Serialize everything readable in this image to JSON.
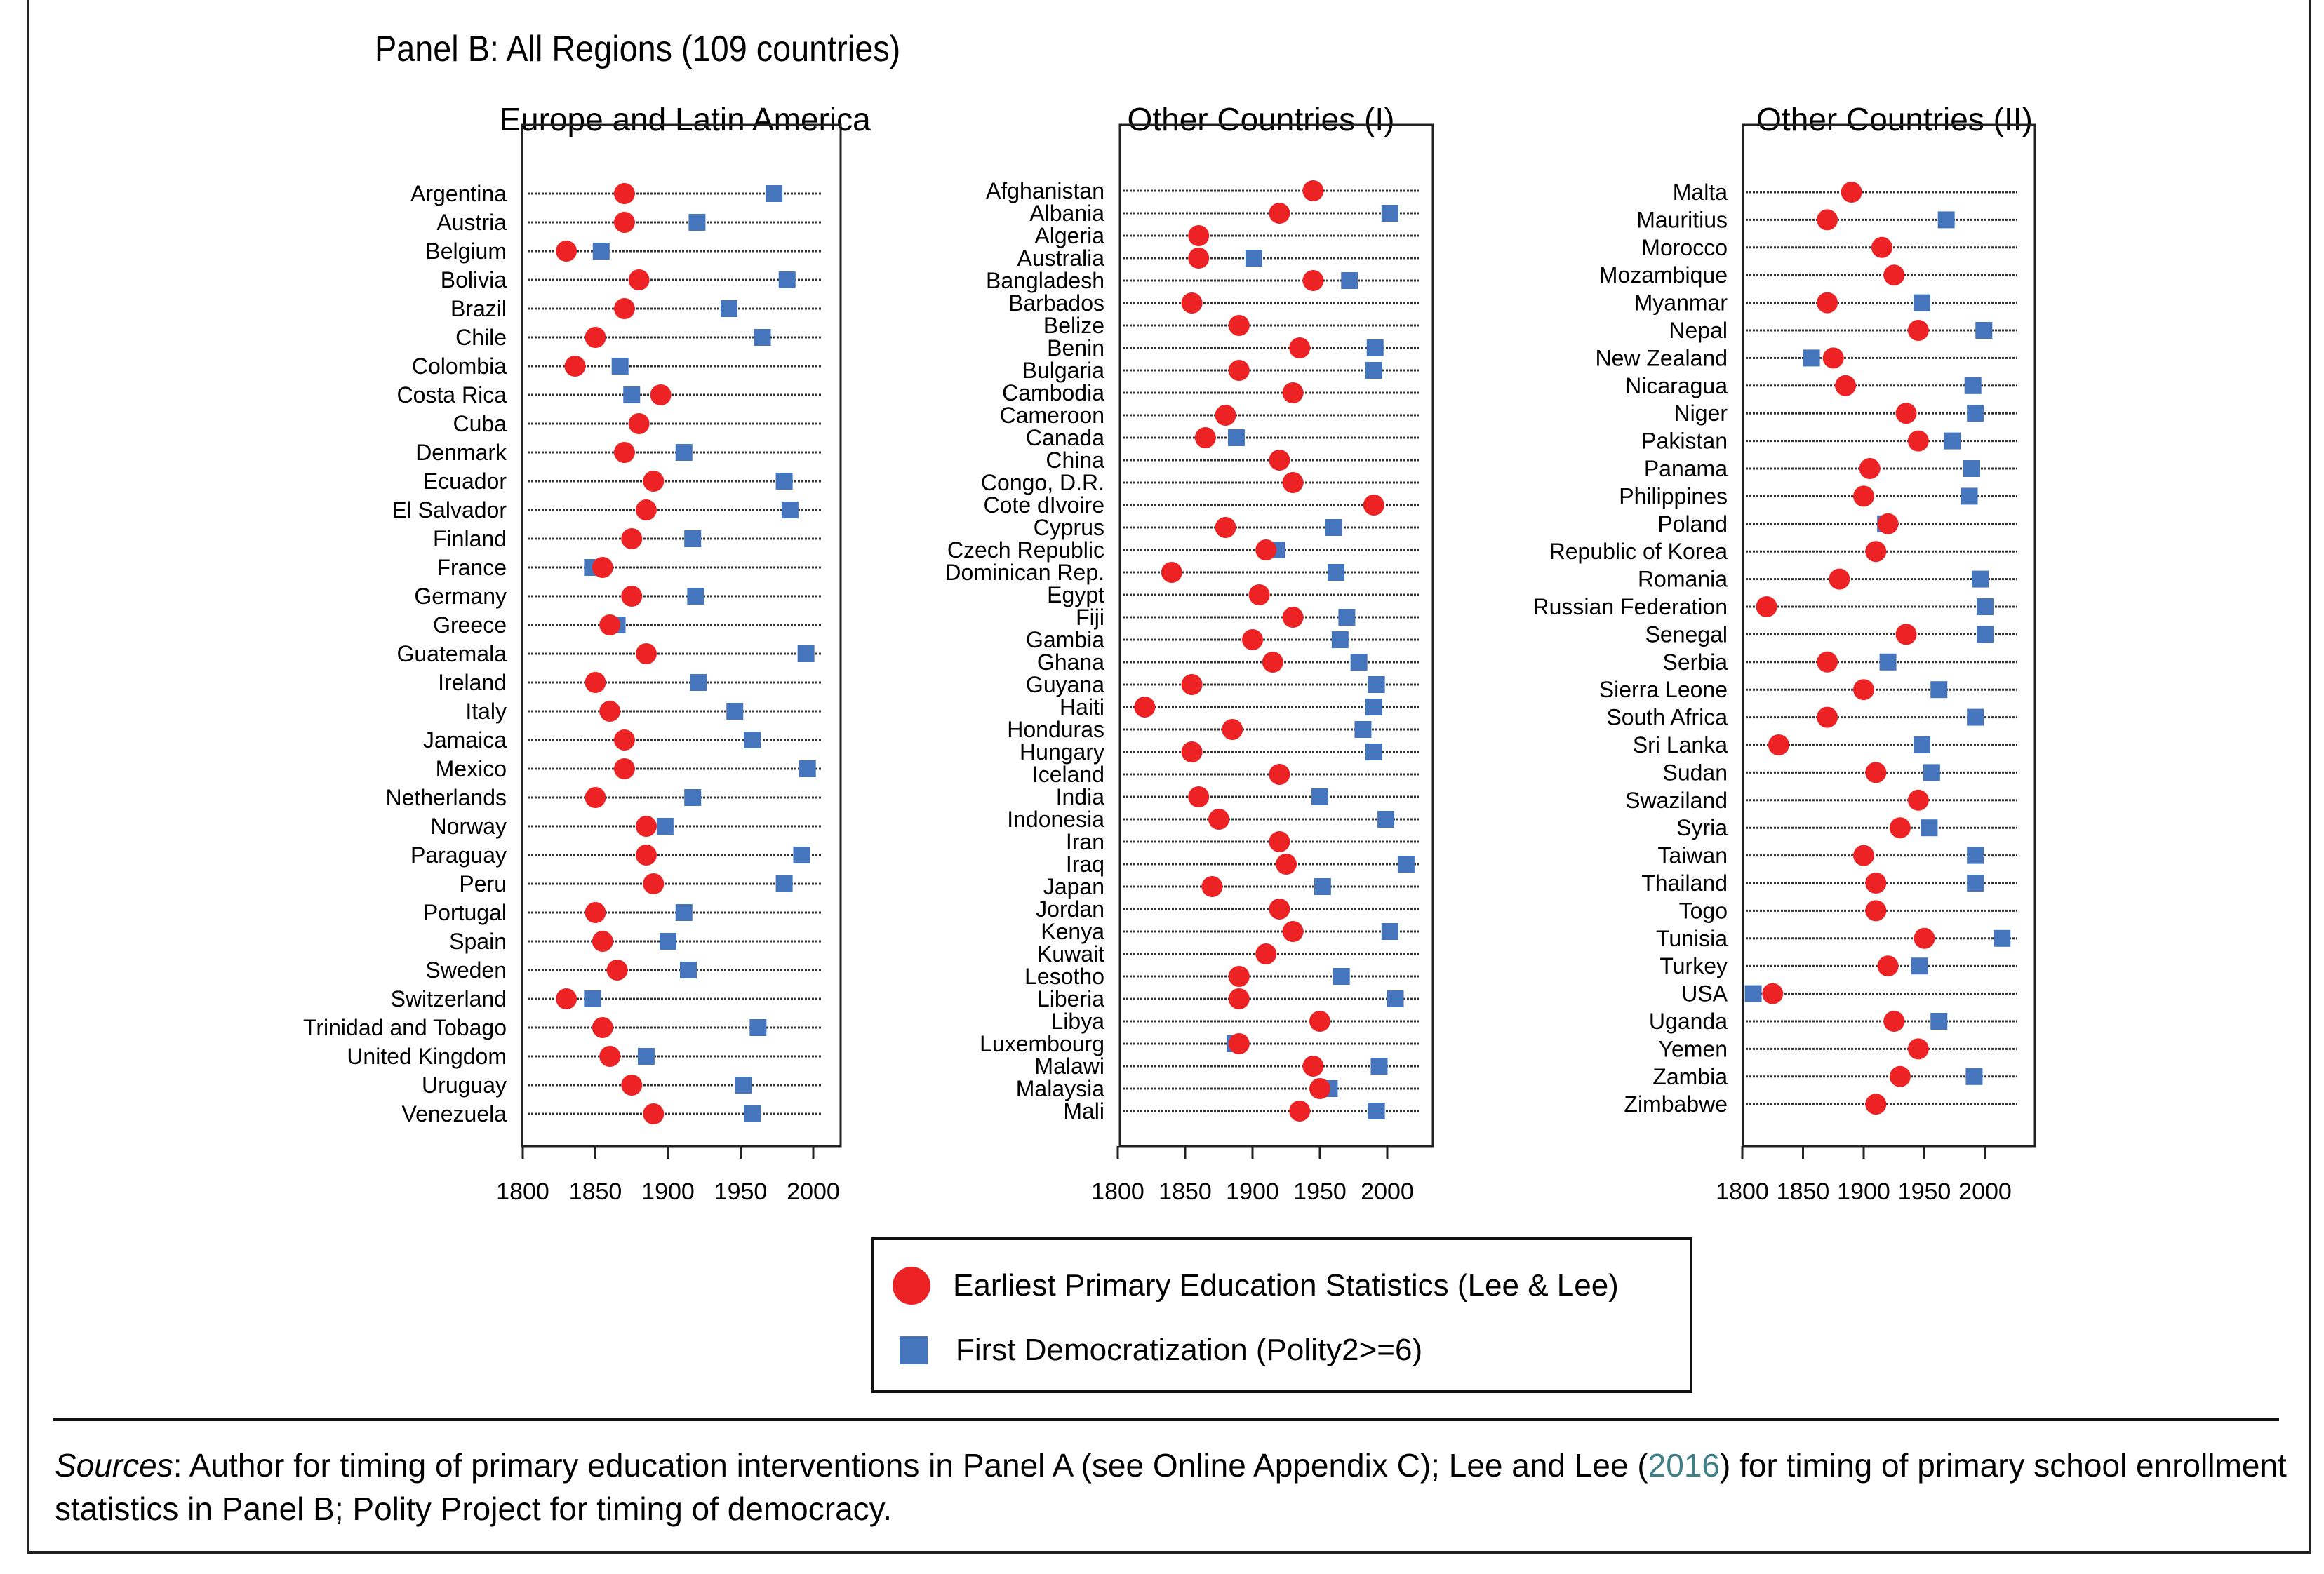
{
  "figure": {
    "panel_title": "Panel B: All Regions (109 countries)",
    "legend": {
      "circle_label": "Earliest Primary Education Statistics (Lee & Lee)",
      "square_label": "First Democratization (Polity2>=6)"
    },
    "sources": {
      "lead": "Sources",
      "text_before_link": ": Author for timing of primary education interventions in Panel A (see Online Appendix C); Lee and Lee (",
      "link": "2016",
      "text_after_link": ") for timing of primary school enrollment statistics in Panel B; Polity Project for timing of democracy."
    }
  },
  "colors": {
    "education": "#ed2224",
    "democracy": "#4575bd",
    "link": "#3f7f86"
  },
  "chart_data": [
    {
      "type": "scatter",
      "title": "Europe and Latin America",
      "xlabel": "",
      "ylabel": "",
      "xlim": [
        1800,
        2000
      ],
      "xticks": [
        "1800",
        "1850",
        "1900",
        "1950",
        "2000"
      ],
      "grid": "dotted horizontal row lines",
      "series_names": [
        "Earliest Primary Education Statistics (Lee & Lee)",
        "First Democratization (Polity2>=6)"
      ],
      "rows": [
        {
          "country": "Argentina",
          "education": 1870,
          "democracy": 1973
        },
        {
          "country": "Austria",
          "education": 1870,
          "democracy": 1920
        },
        {
          "country": "Belgium",
          "education": 1830,
          "democracy": 1854
        },
        {
          "country": "Bolivia",
          "education": 1880,
          "democracy": 1982
        },
        {
          "country": "Brazil",
          "education": 1870,
          "democracy": 1942
        },
        {
          "country": "Chile",
          "education": 1850,
          "democracy": 1965
        },
        {
          "country": "Colombia",
          "education": 1836,
          "democracy": 1867
        },
        {
          "country": "Costa Rica",
          "education": 1895,
          "democracy": 1875
        },
        {
          "country": "Cuba",
          "education": 1880,
          "democracy": null
        },
        {
          "country": "Denmark",
          "education": 1870,
          "democracy": 1911
        },
        {
          "country": "Ecuador",
          "education": 1890,
          "democracy": 1980
        },
        {
          "country": "El Salvador",
          "education": 1885,
          "democracy": 1984
        },
        {
          "country": "Finland",
          "education": 1875,
          "democracy": 1917
        },
        {
          "country": "France",
          "education": 1855,
          "democracy": 1848
        },
        {
          "country": "Germany",
          "education": 1875,
          "democracy": 1919
        },
        {
          "country": "Greece",
          "education": 1860,
          "democracy": 1865
        },
        {
          "country": "Guatemala",
          "education": 1885,
          "democracy": 1995
        },
        {
          "country": "Ireland",
          "education": 1850,
          "democracy": 1921
        },
        {
          "country": "Italy",
          "education": 1860,
          "democracy": 1946
        },
        {
          "country": "Jamaica",
          "education": 1870,
          "democracy": 1958
        },
        {
          "country": "Mexico",
          "education": 1870,
          "democracy": 1996
        },
        {
          "country": "Netherlands",
          "education": 1850,
          "democracy": 1917
        },
        {
          "country": "Norway",
          "education": 1885,
          "democracy": 1898
        },
        {
          "country": "Paraguay",
          "education": 1885,
          "democracy": 1992
        },
        {
          "country": "Peru",
          "education": 1890,
          "democracy": 1980
        },
        {
          "country": "Portugal",
          "education": 1850,
          "democracy": 1911
        },
        {
          "country": "Spain",
          "education": 1855,
          "democracy": 1900
        },
        {
          "country": "Sweden",
          "education": 1865,
          "democracy": 1914
        },
        {
          "country": "Switzerland",
          "education": 1830,
          "democracy": 1848
        },
        {
          "country": "Trinidad and Tobago",
          "education": 1855,
          "democracy": 1962
        },
        {
          "country": "United Kingdom",
          "education": 1860,
          "democracy": 1885
        },
        {
          "country": "Uruguay",
          "education": 1875,
          "democracy": 1952
        },
        {
          "country": "Venezuela",
          "education": 1890,
          "democracy": 1958
        }
      ]
    },
    {
      "type": "scatter",
      "title": "Other Countries (I)",
      "xlabel": "",
      "ylabel": "",
      "xlim": [
        1800,
        2000
      ],
      "xticks": [
        "1800",
        "1850",
        "1900",
        "1950",
        "2000"
      ],
      "grid": "dotted horizontal row lines",
      "series_names": [
        "Earliest Primary Education Statistics (Lee & Lee)",
        "First Democratization (Polity2>=6)"
      ],
      "rows": [
        {
          "country": "Afghanistan",
          "education": 1945,
          "democracy": null
        },
        {
          "country": "Albania",
          "education": 1920,
          "democracy": 2002
        },
        {
          "country": "Algeria",
          "education": 1860,
          "democracy": null
        },
        {
          "country": "Australia",
          "education": 1860,
          "democracy": 1901
        },
        {
          "country": "Bangladesh",
          "education": 1945,
          "democracy": 1972
        },
        {
          "country": "Barbados",
          "education": 1855,
          "democracy": null
        },
        {
          "country": "Belize",
          "education": 1890,
          "democracy": null
        },
        {
          "country": "Benin",
          "education": 1935,
          "democracy": 1991
        },
        {
          "country": "Bulgaria",
          "education": 1890,
          "democracy": 1990
        },
        {
          "country": "Cambodia",
          "education": 1930,
          "democracy": null
        },
        {
          "country": "Cameroon",
          "education": 1880,
          "democracy": null
        },
        {
          "country": "Canada",
          "education": 1865,
          "democracy": 1888
        },
        {
          "country": "China",
          "education": 1920,
          "democracy": null
        },
        {
          "country": "Congo, D.R.",
          "education": 1930,
          "democracy": null
        },
        {
          "country": "Cote dIvoire",
          "education": 1990,
          "democracy": null
        },
        {
          "country": "Cyprus",
          "education": 1880,
          "democracy": 1960
        },
        {
          "country": "Czech Republic",
          "education": 1910,
          "democracy": 1918
        },
        {
          "country": "Dominican Rep.",
          "education": 1840,
          "democracy": 1962
        },
        {
          "country": "Egypt",
          "education": 1905,
          "democracy": null
        },
        {
          "country": "Fiji",
          "education": 1930,
          "democracy": 1970
        },
        {
          "country": "Gambia",
          "education": 1900,
          "democracy": 1965
        },
        {
          "country": "Ghana",
          "education": 1915,
          "democracy": 1979
        },
        {
          "country": "Guyana",
          "education": 1855,
          "democracy": 1992
        },
        {
          "country": "Haiti",
          "education": 1820,
          "democracy": 1990
        },
        {
          "country": "Honduras",
          "education": 1885,
          "democracy": 1982
        },
        {
          "country": "Hungary",
          "education": 1855,
          "democracy": 1990
        },
        {
          "country": "Iceland",
          "education": 1920,
          "democracy": null
        },
        {
          "country": "India",
          "education": 1860,
          "democracy": 1950
        },
        {
          "country": "Indonesia",
          "education": 1875,
          "democracy": 1999
        },
        {
          "country": "Iran",
          "education": 1920,
          "democracy": null
        },
        {
          "country": "Iraq",
          "education": 1925,
          "democracy": 2014
        },
        {
          "country": "Japan",
          "education": 1870,
          "democracy": 1952
        },
        {
          "country": "Jordan",
          "education": 1920,
          "democracy": null
        },
        {
          "country": "Kenya",
          "education": 1930,
          "democracy": 2002
        },
        {
          "country": "Kuwait",
          "education": 1910,
          "democracy": null
        },
        {
          "country": "Lesotho",
          "education": 1890,
          "democracy": 1966
        },
        {
          "country": "Liberia",
          "education": 1890,
          "democracy": 2006
        },
        {
          "country": "Libya",
          "education": 1950,
          "democracy": null
        },
        {
          "country": "Luxembourg",
          "education": 1890,
          "democracy": 1887
        },
        {
          "country": "Malawi",
          "education": 1945,
          "democracy": 1994
        },
        {
          "country": "Malaysia",
          "education": 1950,
          "democracy": 1957
        },
        {
          "country": "Mali",
          "education": 1935,
          "democracy": 1992
        }
      ]
    },
    {
      "type": "scatter",
      "title": "Other Countries (II)",
      "xlabel": "",
      "ylabel": "",
      "xlim": [
        1800,
        2000
      ],
      "xticks": [
        "1800",
        "1850",
        "1900",
        "1950",
        "2000"
      ],
      "grid": "dotted horizontal row lines",
      "series_names": [
        "Earliest Primary Education Statistics (Lee & Lee)",
        "First Democratization (Polity2>=6)"
      ],
      "rows": [
        {
          "country": "Malta",
          "education": 1890,
          "democracy": null
        },
        {
          "country": "Mauritius",
          "education": 1870,
          "democracy": 1968
        },
        {
          "country": "Morocco",
          "education": 1915,
          "democracy": null
        },
        {
          "country": "Mozambique",
          "education": 1925,
          "democracy": null
        },
        {
          "country": "Myanmar",
          "education": 1870,
          "democracy": 1948
        },
        {
          "country": "Nepal",
          "education": 1945,
          "democracy": 1999
        },
        {
          "country": "New Zealand",
          "education": 1875,
          "democracy": 1857
        },
        {
          "country": "Nicaragua",
          "education": 1885,
          "democracy": 1990
        },
        {
          "country": "Niger",
          "education": 1935,
          "democracy": 1992
        },
        {
          "country": "Pakistan",
          "education": 1945,
          "democracy": 1973
        },
        {
          "country": "Panama",
          "education": 1905,
          "democracy": 1989
        },
        {
          "country": "Philippines",
          "education": 1900,
          "democracy": 1987
        },
        {
          "country": "Poland",
          "education": 1920,
          "democracy": 1918
        },
        {
          "country": "Republic of Korea",
          "education": 1910,
          "democracy": null
        },
        {
          "country": "Romania",
          "education": 1880,
          "democracy": 1996
        },
        {
          "country": "Russian Federation",
          "education": 1820,
          "democracy": 2000
        },
        {
          "country": "Senegal",
          "education": 1935,
          "democracy": 2000
        },
        {
          "country": "Serbia",
          "education": 1870,
          "democracy": 1920
        },
        {
          "country": "Sierra Leone",
          "education": 1900,
          "democracy": 1962
        },
        {
          "country": "South Africa",
          "education": 1870,
          "democracy": 1992
        },
        {
          "country": "Sri Lanka",
          "education": 1830,
          "democracy": 1948
        },
        {
          "country": "Sudan",
          "education": 1910,
          "democracy": 1956
        },
        {
          "country": "Swaziland",
          "education": 1945,
          "democracy": null
        },
        {
          "country": "Syria",
          "education": 1930,
          "democracy": 1954
        },
        {
          "country": "Taiwan",
          "education": 1900,
          "democracy": 1992
        },
        {
          "country": "Thailand",
          "education": 1910,
          "democracy": 1992
        },
        {
          "country": "Togo",
          "education": 1910,
          "democracy": null
        },
        {
          "country": "Tunisia",
          "education": 1950,
          "democracy": 2014
        },
        {
          "country": "Turkey",
          "education": 1920,
          "democracy": 1946
        },
        {
          "country": "USA",
          "education": 1825,
          "democracy": 1809
        },
        {
          "country": "Uganda",
          "education": 1925,
          "democracy": 1962
        },
        {
          "country": "Yemen",
          "education": 1945,
          "democracy": null
        },
        {
          "country": "Zambia",
          "education": 1930,
          "democracy": 1991
        },
        {
          "country": "Zimbabwe",
          "education": 1910,
          "democracy": null
        }
      ]
    }
  ]
}
